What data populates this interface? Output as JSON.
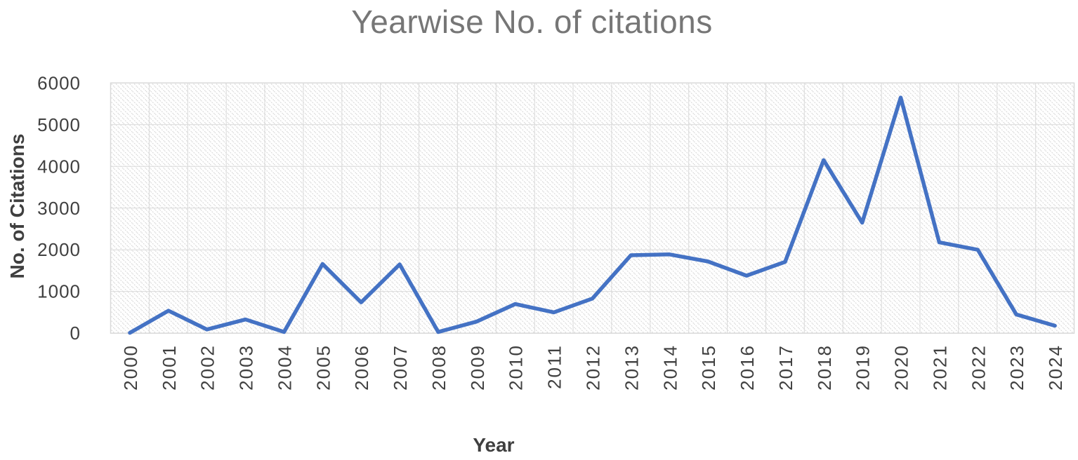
{
  "chart_data": {
    "type": "line",
    "title": "Yearwise No. of citations",
    "xlabel": "Year",
    "ylabel": "No. of Citations",
    "categories": [
      "2000",
      "2001",
      "2002",
      "2003",
      "2004",
      "2005",
      "2006",
      "2007",
      "2008",
      "2009",
      "2010",
      "2011",
      "2012",
      "2013",
      "2014",
      "2015",
      "2016",
      "2017",
      "2018",
      "2019",
      "2020",
      "2021",
      "2022",
      "2023",
      "2024"
    ],
    "series": [
      {
        "name": "No. of citations",
        "color": "#4472C4",
        "values": [
          10,
          540,
          90,
          330,
          30,
          1660,
          740,
          1650,
          30,
          280,
          700,
          500,
          830,
          1870,
          1890,
          1720,
          1380,
          1710,
          4150,
          2650,
          5650,
          2180,
          2000,
          450,
          180
        ]
      }
    ],
    "ylim": [
      0,
      6000
    ],
    "ytick_step": 1000,
    "grid": true,
    "legend_position": "none",
    "plot_area_fill": "light-downward-diagonal-hatch",
    "x_tick_rotation_degrees": 90
  },
  "colors": {
    "background": "#FFFFFF",
    "series_line": "#4472C4",
    "title_text": "#767676",
    "axis_title_text": "#3F3F3F",
    "tick_text": "#404040",
    "gridline": "#D9D9D9",
    "hatch_stripe": "#DCDCDC"
  }
}
